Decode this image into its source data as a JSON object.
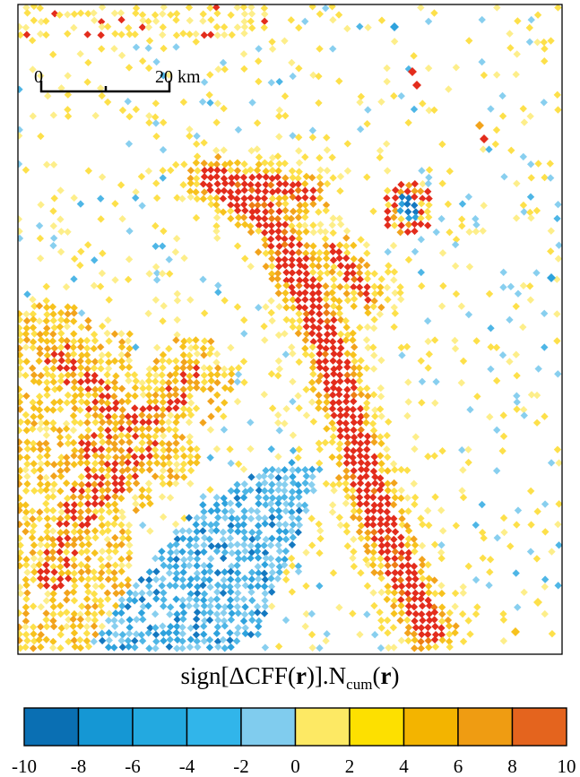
{
  "scale_bar": {
    "start_label": "0",
    "end_label": "20 km"
  },
  "colorbar": {
    "title": {
      "prefix": "sign[",
      "delta": "ΔCFF(",
      "r1": "r",
      "mid": ")].N",
      "sub": "cum",
      "open2": "(",
      "r2": "r",
      "close2": ")"
    },
    "ticks": [
      "-10",
      "-8",
      "-6",
      "-4",
      "-2",
      "0",
      "2",
      "4",
      "6",
      "8",
      "10"
    ],
    "bin_colors": [
      "#0a6fb3",
      "#1597d4",
      "#23a9e0",
      "#31b5ea",
      "#80ccee",
      "#fde964",
      "#fde000",
      "#f3b400",
      "#ef9c12",
      "#e4641e"
    ]
  },
  "map_colors": {
    "red_core": "#e32c1c",
    "orange_dark": "#ed7d14",
    "orange": "#f2a31c",
    "amber": "#f7c21e",
    "yellow": "#fde04a",
    "light_yellow": "#fdee8a",
    "light_blue": "#88cfef",
    "blue": "#4eb6e6",
    "mid_blue": "#2ea2dd",
    "dark_blue": "#1478c0"
  }
}
